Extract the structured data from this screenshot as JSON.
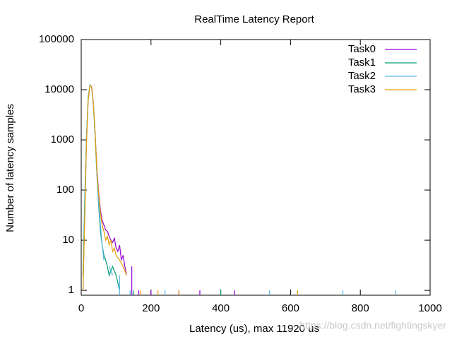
{
  "chart_data": {
    "type": "line",
    "title": "RealTime Latency Report",
    "x_label": "Latency (us), max 11920 us",
    "y_label": "Number of latency samples",
    "watermark": "https://blog.csdn.net/fightingskyer",
    "log_y": true,
    "legend": "top-right",
    "xlim": [
      0,
      1000
    ],
    "xticks": [
      0,
      200,
      400,
      600,
      800,
      1000
    ],
    "ylim": [
      0.8,
      100000
    ],
    "yticks": [
      1,
      10,
      100,
      1000,
      10000,
      100000
    ],
    "series": [
      {
        "name": "Task0",
        "color": "#9400d3",
        "x": [
          5,
          10,
          15,
          20,
          25,
          30,
          35,
          40,
          45,
          50,
          55,
          60,
          65,
          70,
          75,
          80,
          85,
          90,
          95,
          100,
          105,
          110,
          115,
          120,
          125,
          130,
          140,
          145,
          160,
          165,
          180,
          200,
          240,
          280,
          300,
          340,
          380,
          440
        ],
        "values": [
          1,
          30,
          900,
          6500,
          12000,
          11500,
          5200,
          1300,
          260,
          90,
          40,
          25,
          20,
          16,
          15,
          12,
          10,
          9,
          11,
          7,
          6,
          8,
          4,
          5,
          3,
          2,
          null,
          3,
          null,
          1,
          null,
          1,
          null,
          1,
          null,
          1,
          null,
          1
        ]
      },
      {
        "name": "Task1",
        "color": "#009e73",
        "x": [
          5,
          10,
          15,
          20,
          25,
          30,
          35,
          40,
          45,
          50,
          55,
          60,
          65,
          70,
          75,
          80,
          90,
          100,
          110,
          120,
          150,
          200,
          400
        ],
        "values": [
          2,
          60,
          1100,
          7000,
          12500,
          11000,
          4800,
          1100,
          200,
          50,
          15,
          8,
          5,
          4,
          3,
          2,
          3,
          2,
          1,
          null,
          1,
          null,
          1
        ]
      },
      {
        "name": "Task2",
        "color": "#56b4e9",
        "x": [
          5,
          10,
          15,
          20,
          25,
          30,
          35,
          40,
          45,
          50,
          55,
          60,
          65,
          70,
          80,
          90,
          100,
          110,
          120,
          140,
          180,
          240,
          380,
          540,
          670,
          750,
          800,
          900
        ],
        "values": [
          1,
          40,
          1000,
          6800,
          12200,
          11200,
          5000,
          1150,
          220,
          60,
          20,
          8,
          4,
          null,
          3,
          2,
          null,
          2,
          null,
          1,
          null,
          1,
          null,
          1,
          null,
          1,
          null,
          1
        ]
      },
      {
        "name": "Task3",
        "color": "#e69f00",
        "x": [
          5,
          10,
          15,
          20,
          25,
          30,
          35,
          40,
          45,
          50,
          55,
          60,
          65,
          70,
          75,
          80,
          85,
          90,
          95,
          100,
          110,
          120,
          130,
          150,
          170,
          200,
          220,
          240,
          280,
          300,
          620
        ],
        "values": [
          1,
          25,
          850,
          6300,
          12100,
          11300,
          5100,
          1250,
          240,
          80,
          35,
          20,
          15,
          10,
          12,
          8,
          10,
          6,
          7,
          5,
          4,
          3,
          2,
          null,
          1,
          null,
          1,
          null,
          1,
          null,
          1
        ]
      }
    ]
  }
}
